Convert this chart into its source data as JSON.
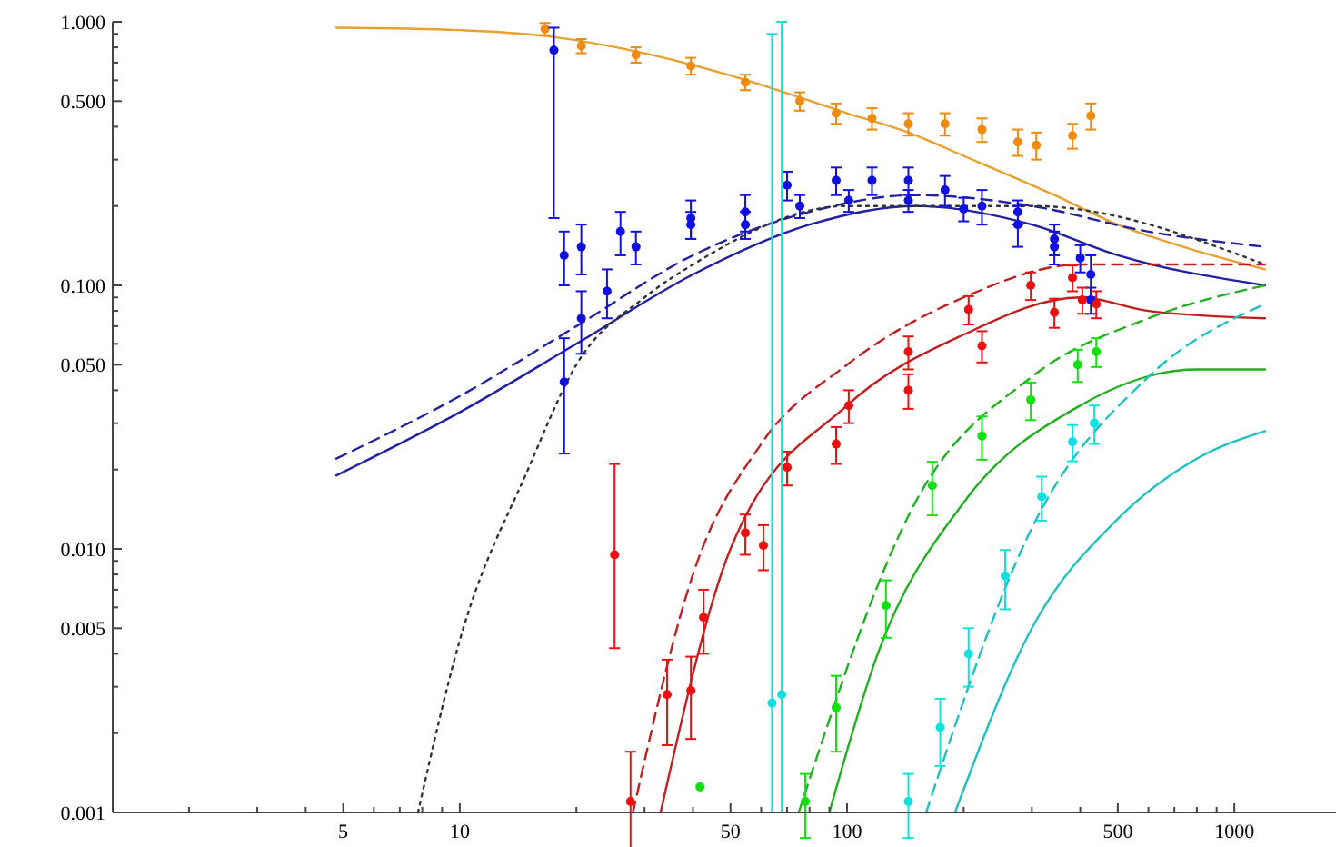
{
  "chart_data": {
    "type": "scatter",
    "log": "xy",
    "grid": false,
    "marker": "circle",
    "xlim": [
      1.27,
      1830
    ],
    "ylim": [
      0.001,
      1
    ],
    "xticks": [
      {
        "value": 2,
        "label": null
      },
      {
        "value": 3,
        "label": null
      },
      {
        "value": 4,
        "label": null
      },
      5,
      {
        "value": 6,
        "label": null
      },
      {
        "value": 7,
        "label": null
      },
      {
        "value": 8,
        "label": null
      },
      {
        "value": 9,
        "label": null
      },
      10,
      {
        "value": 20,
        "label": null
      },
      {
        "value": 30,
        "label": null
      },
      {
        "value": 40,
        "label": null
      },
      50,
      {
        "value": 60,
        "label": null
      },
      {
        "value": 70,
        "label": null
      },
      {
        "value": 80,
        "label": null
      },
      {
        "value": 90,
        "label": null
      },
      100,
      {
        "value": 200,
        "label": null
      },
      {
        "value": 300,
        "label": null
      },
      {
        "value": 400,
        "label": null
      },
      500,
      {
        "value": 600,
        "label": null
      },
      {
        "value": 700,
        "label": null
      },
      {
        "value": 800,
        "label": null
      },
      {
        "value": 900,
        "label": null
      },
      1000
    ],
    "yticks": [
      {
        "value": 0.001,
        "label": "0.001"
      },
      {
        "value": 0.002,
        "label": null
      },
      {
        "value": 0.003,
        "label": null
      },
      {
        "value": 0.004,
        "label": null
      },
      {
        "value": 0.005,
        "label": "0.005"
      },
      {
        "value": 0.006,
        "label": null
      },
      {
        "value": 0.007,
        "label": null
      },
      {
        "value": 0.008,
        "label": null
      },
      {
        "value": 0.009,
        "label": null
      },
      {
        "value": 0.01,
        "label": "0.010"
      },
      {
        "value": 0.02,
        "label": null
      },
      {
        "value": 0.03,
        "label": null
      },
      {
        "value": 0.04,
        "label": null
      },
      {
        "value": 0.05,
        "label": "0.050"
      },
      {
        "value": 0.06,
        "label": null
      },
      {
        "value": 0.07,
        "label": null
      },
      {
        "value": 0.08,
        "label": null
      },
      {
        "value": 0.09,
        "label": null
      },
      {
        "value": 0.1,
        "label": "0.100"
      },
      {
        "value": 0.2,
        "label": null
      },
      {
        "value": 0.3,
        "label": null
      },
      {
        "value": 0.4,
        "label": null
      },
      {
        "value": 0.5,
        "label": "0.500"
      },
      {
        "value": 0.6,
        "label": null
      },
      {
        "value": 0.7,
        "label": null
      },
      {
        "value": 0.8,
        "label": null
      },
      {
        "value": 0.9,
        "label": null
      },
      {
        "value": 1,
        "label": "1.000"
      }
    ],
    "series": [
      {
        "type": "line",
        "line_style": "solid",
        "marker": "none",
        "color": "#e8a030",
        "x": [
          4.8,
          10,
          17,
          30,
          55,
          100,
          144,
          200,
          343,
          500,
          800,
          1200
        ],
        "values": [
          0.95,
          0.93,
          0.88,
          0.76,
          0.6,
          0.45,
          0.38,
          0.31,
          0.22,
          0.17,
          0.135,
          0.115
        ]
      },
      {
        "type": "line",
        "line_style": "solid",
        "marker": "none",
        "color": "#2020a0",
        "x": [
          4.8,
          10,
          20,
          40,
          80,
          150,
          300,
          500,
          1200
        ],
        "values": [
          0.019,
          0.033,
          0.06,
          0.11,
          0.17,
          0.2,
          0.17,
          0.13,
          0.1
        ]
      },
      {
        "type": "line",
        "line_style": "dashed",
        "marker": "none",
        "color": "#2020a0",
        "x": [
          4.8,
          10,
          20,
          40,
          80,
          150,
          300,
          600,
          1200
        ],
        "values": [
          0.022,
          0.038,
          0.07,
          0.13,
          0.19,
          0.22,
          0.2,
          0.16,
          0.14
        ]
      },
      {
        "type": "line",
        "line_style": "dotted",
        "marker": "none",
        "color": "#333333",
        "x": [
          7.8,
          10,
          15,
          20,
          30,
          40,
          100,
          300,
          1200
        ],
        "values": [
          0.001,
          0.0045,
          0.02,
          0.05,
          0.09,
          0.12,
          0.2,
          0.2,
          0.12
        ]
      },
      {
        "type": "line",
        "line_style": "solid",
        "marker": "none",
        "color": "#c02020",
        "x": [
          33,
          50,
          100,
          200,
          400,
          600,
          1200
        ],
        "values": [
          0.001,
          0.01,
          0.035,
          0.065,
          0.09,
          0.08,
          0.075
        ]
      },
      {
        "type": "line",
        "line_style": "dashed",
        "marker": "none",
        "color": "#c02020",
        "x": [
          28,
          40,
          60,
          100,
          200,
          400,
          1200
        ],
        "values": [
          0.001,
          0.008,
          0.025,
          0.05,
          0.09,
          0.12,
          0.12
        ]
      },
      {
        "type": "line",
        "line_style": "solid",
        "marker": "none",
        "color": "#20b020",
        "x": [
          90,
          120,
          200,
          400,
          800,
          1200
        ],
        "values": [
          0.001,
          0.004,
          0.015,
          0.035,
          0.048,
          0.048
        ]
      },
      {
        "type": "line",
        "line_style": "dashed",
        "marker": "none",
        "color": "#20b020",
        "x": [
          75,
          150,
          300,
          600,
          1200
        ],
        "values": [
          0.001,
          0.015,
          0.045,
          0.075,
          0.1
        ]
      },
      {
        "type": "line",
        "line_style": "solid",
        "marker": "none",
        "color": "#20c0c0",
        "x": [
          190,
          300,
          500,
          800,
          1200
        ],
        "values": [
          0.001,
          0.005,
          0.013,
          0.022,
          0.028
        ]
      },
      {
        "type": "line",
        "line_style": "dashed",
        "marker": "none",
        "color": "#20c0c0",
        "x": [
          160,
          300,
          600,
          1200
        ],
        "values": [
          0.001,
          0.012,
          0.045,
          0.085
        ]
      },
      {
        "color": "#f08a10",
        "x": [
          16.6,
          20.6,
          28.5,
          39.5,
          54.6,
          75.5,
          93.7,
          116,
          144,
          179,
          223,
          276,
          308,
          382,
          426
        ],
        "values": [
          0.94,
          0.81,
          0.75,
          0.68,
          0.59,
          0.5,
          0.45,
          0.43,
          0.41,
          0.41,
          0.39,
          0.35,
          0.34,
          0.37,
          0.44
        ],
        "errors": [
          0.05,
          0.05,
          0.05,
          0.05,
          0.04,
          0.04,
          0.04,
          0.04,
          0.04,
          0.04,
          0.04,
          0.04,
          0.04,
          0.04,
          0.05
        ]
      },
      {
        "color": "#1010e0",
        "x": [
          17.5,
          18.6,
          20.6,
          26,
          39.5,
          54.6,
          70,
          93.7,
          116,
          144,
          179,
          223,
          276,
          343,
          426
        ],
        "values": [
          0.78,
          0.13,
          0.14,
          0.16,
          0.18,
          0.19,
          0.24,
          0.25,
          0.25,
          0.25,
          0.23,
          0.2,
          0.17,
          0.14,
          0.11
        ],
        "errors": [
          [
            0.18,
            0.95
          ],
          0.03,
          0.03,
          0.03,
          0.03,
          0.03,
          0.03,
          0.03,
          0.03,
          0.03,
          0.03,
          0.03,
          0.03,
          0.02,
          0.02
        ]
      },
      {
        "color": "#1010e0",
        "x": [
          18.6,
          20.6,
          24,
          28.5,
          39.5,
          54.6,
          75.5,
          101,
          144,
          200,
          276,
          343,
          400,
          426
        ],
        "values": [
          0.043,
          0.075,
          0.095,
          0.14,
          0.17,
          0.17,
          0.2,
          0.21,
          0.21,
          0.195,
          0.19,
          0.15,
          0.127,
          0.088
        ],
        "errors": [
          0.02,
          0.02,
          0.02,
          0.02,
          0.02,
          0.02,
          0.02,
          0.02,
          0.02,
          0.02,
          0.02,
          0.02,
          0.015,
          0.01
        ]
      },
      {
        "color": "#ee1010",
        "x": [
          25.1,
          27.6,
          34.3,
          42.6,
          54.6,
          70,
          101,
          144,
          206,
          298,
          382,
          440
        ],
        "values": [
          0.0095,
          0.0011,
          0.0028,
          0.0055,
          0.0115,
          0.0204,
          0.035,
          0.056,
          0.081,
          0.1,
          0.107,
          0.085
        ],
        "errors": [
          [
            0.0042,
            0.021
          ],
          0.0006,
          0.001,
          0.0015,
          0.002,
          0.003,
          0.005,
          0.008,
          0.01,
          0.012,
          0.012,
          0.01
        ]
      },
      {
        "color": "#ee1010",
        "x": [
          39.5,
          60.8,
          93.7,
          144,
          223,
          343,
          405
        ],
        "values": [
          0.0029,
          0.0103,
          0.025,
          0.04,
          0.059,
          0.079,
          0.088
        ],
        "errors": [
          0.001,
          0.002,
          0.004,
          0.006,
          0.008,
          0.01,
          0.01
        ]
      },
      {
        "color": "#10e010",
        "x": [
          41.7,
          78,
          93.7,
          126,
          166,
          223,
          298,
          394,
          440
        ],
        "values": [
          0.00125,
          0.0011,
          0.0025,
          0.0061,
          0.0174,
          0.0268,
          0.0368,
          0.05,
          0.056
        ],
        "errors": [
          null,
          0.0003,
          0.0008,
          0.0015,
          0.004,
          0.005,
          0.006,
          0.007,
          0.007
        ]
      },
      {
        "color": "#10e0e0",
        "x": [
          64,
          67.8,
          144,
          174,
          206,
          256,
          318,
          382,
          435
        ],
        "values": [
          0.0026,
          0.0028,
          0.0011,
          0.0021,
          0.004,
          0.0079,
          0.0158,
          0.0255,
          0.03
        ],
        "errors": [
          [
            0.001,
            0.9
          ],
          [
            0.001,
            1
          ],
          0.0003,
          0.0006,
          0.001,
          0.002,
          0.003,
          0.004,
          0.005
        ]
      }
    ]
  }
}
